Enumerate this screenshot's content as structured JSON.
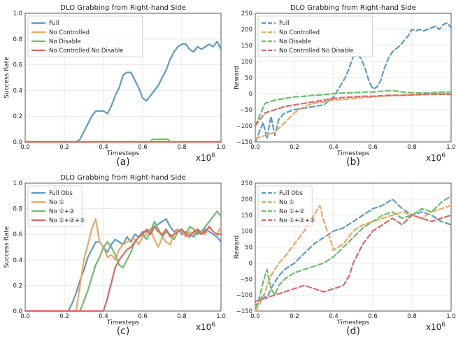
{
  "colors": {
    "blue": "#5b9bc8",
    "orange": "#f4a460",
    "green": "#6abf69",
    "red": "#e06666"
  },
  "chart_data": [
    {
      "panel": "(a)",
      "type": "line",
      "dashed": false,
      "title": "DLO Grabbing from Right-hand Side",
      "xlabel": "Timesteps",
      "ylabel": "Success Rate",
      "x_scale_label": "x10",
      "x_scale_exp": "6",
      "xlim": [
        0,
        1.0
      ],
      "ylim": [
        0,
        1.0
      ],
      "xticks": [
        "0.0",
        "0.2",
        "0.4",
        "0.6",
        "0.8",
        "1.0"
      ],
      "yticks": [
        "0.0",
        "0.2",
        "0.4",
        "0.6",
        "0.8",
        "1.0"
      ],
      "legend_position": "top-left",
      "series": [
        {
          "name": "Full",
          "color": "#5b9bc8",
          "x": [
            0,
            0.26,
            0.28,
            0.3,
            0.32,
            0.34,
            0.36,
            0.38,
            0.4,
            0.42,
            0.44,
            0.46,
            0.48,
            0.5,
            0.52,
            0.54,
            0.56,
            0.58,
            0.6,
            0.62,
            0.64,
            0.66,
            0.68,
            0.7,
            0.72,
            0.74,
            0.76,
            0.78,
            0.8,
            0.82,
            0.84,
            0.86,
            0.88,
            0.9,
            0.92,
            0.94,
            0.96,
            0.98,
            1.0
          ],
          "y": [
            0,
            0,
            0.02,
            0.08,
            0.14,
            0.2,
            0.24,
            0.24,
            0.24,
            0.22,
            0.28,
            0.36,
            0.42,
            0.52,
            0.54,
            0.54,
            0.48,
            0.42,
            0.34,
            0.32,
            0.36,
            0.4,
            0.44,
            0.5,
            0.56,
            0.64,
            0.7,
            0.74,
            0.76,
            0.76,
            0.72,
            0.7,
            0.74,
            0.72,
            0.74,
            0.76,
            0.74,
            0.78,
            0.72
          ]
        },
        {
          "name": "No Controlled",
          "color": "#f4a460",
          "x": [
            0,
            1.0
          ],
          "y": [
            0,
            0
          ]
        },
        {
          "name": "No Disable",
          "color": "#6abf69",
          "x": [
            0,
            0.64,
            0.65,
            0.73,
            0.74,
            1.0
          ],
          "y": [
            0,
            0,
            0.02,
            0.02,
            0,
            0
          ]
        },
        {
          "name": "No Controlled No Disable",
          "color": "#e06666",
          "x": [
            0,
            1.0
          ],
          "y": [
            0,
            0
          ]
        }
      ]
    },
    {
      "panel": "(b)",
      "type": "line",
      "dashed": true,
      "title": "DLO Grabbing from Right-hand Side",
      "xlabel": "Timesteps",
      "ylabel": "Reward",
      "x_scale_label": "x10",
      "x_scale_exp": "6",
      "xlim": [
        0,
        1.0
      ],
      "ylim": [
        -150,
        250
      ],
      "xticks": [
        "0.0",
        "0.2",
        "0.4",
        "0.6",
        "0.8",
        "1.0"
      ],
      "yticks": [
        "−150",
        "−100",
        "−50",
        "0",
        "50",
        "100",
        "150",
        "200",
        "250"
      ],
      "legend_position": "top-left",
      "series": [
        {
          "name": "Full",
          "color": "#5b9bc8",
          "x": [
            0,
            0.02,
            0.04,
            0.06,
            0.08,
            0.1,
            0.12,
            0.15,
            0.2,
            0.25,
            0.3,
            0.35,
            0.4,
            0.43,
            0.46,
            0.48,
            0.5,
            0.52,
            0.54,
            0.56,
            0.58,
            0.6,
            0.62,
            0.64,
            0.66,
            0.68,
            0.7,
            0.72,
            0.74,
            0.76,
            0.78,
            0.8,
            0.82,
            0.84,
            0.86,
            0.88,
            0.9,
            0.92,
            0.94,
            0.96,
            0.98,
            1.0
          ],
          "y": [
            -150,
            -120,
            -90,
            -140,
            -70,
            -130,
            -80,
            -60,
            -50,
            -45,
            -40,
            -35,
            -10,
            20,
            50,
            80,
            115,
            120,
            110,
            80,
            40,
            15,
            20,
            40,
            80,
            110,
            130,
            140,
            150,
            165,
            180,
            200,
            195,
            200,
            195,
            200,
            205,
            210,
            200,
            215,
            220,
            205
          ]
        },
        {
          "name": "No Controlled",
          "color": "#f4a460",
          "x": [
            0,
            0.05,
            0.1,
            0.15,
            0.2,
            0.25,
            0.3,
            0.35,
            0.4,
            0.45,
            0.5,
            0.55,
            0.6,
            0.65,
            0.7,
            0.75,
            0.8,
            0.85,
            0.9,
            0.95,
            1.0
          ],
          "y": [
            -140,
            -130,
            -120,
            -90,
            -60,
            -40,
            -30,
            -25,
            -20,
            -18,
            -15,
            -12,
            -10,
            -8,
            -6,
            -5,
            -4,
            -2,
            0,
            0,
            0
          ]
        },
        {
          "name": "No Disable",
          "color": "#6abf69",
          "x": [
            0,
            0.05,
            0.1,
            0.15,
            0.2,
            0.25,
            0.3,
            0.35,
            0.4,
            0.45,
            0.5,
            0.55,
            0.6,
            0.65,
            0.7,
            0.75,
            0.8,
            0.85,
            0.9,
            0.95,
            1.0
          ],
          "y": [
            -100,
            -30,
            -20,
            -15,
            -10,
            -8,
            -5,
            -3,
            0,
            2,
            3,
            5,
            5,
            8,
            10,
            5,
            3,
            2,
            3,
            5,
            5
          ]
        },
        {
          "name": "No Controlled No Disable",
          "color": "#e06666",
          "x": [
            0,
            0.05,
            0.1,
            0.15,
            0.2,
            0.25,
            0.3,
            0.35,
            0.4,
            0.45,
            0.5,
            0.55,
            0.6,
            0.65,
            0.7,
            0.75,
            0.8,
            0.85,
            0.9,
            0.95,
            1.0
          ],
          "y": [
            -100,
            -60,
            -50,
            -40,
            -35,
            -30,
            -25,
            -20,
            -15,
            -12,
            -10,
            -8,
            -8,
            -6,
            -5,
            -5,
            -4,
            -3,
            -2,
            -2,
            -2
          ]
        }
      ]
    },
    {
      "panel": "(c)",
      "type": "line",
      "dashed": false,
      "title": "DLO Grabbing from Right-hand Side",
      "xlabel": "Timesteps",
      "ylabel": "Success Rate",
      "x_scale_label": "x10",
      "x_scale_exp": "6",
      "xlim": [
        0,
        1.0
      ],
      "ylim": [
        0,
        1.0
      ],
      "xticks": [
        "0.0",
        "0.2",
        "0.4",
        "0.6",
        "0.8",
        "1.0"
      ],
      "yticks": [
        "0.0",
        "0.2",
        "0.4",
        "0.6",
        "0.8",
        "1.0"
      ],
      "legend_position": "top-left",
      "series": [
        {
          "name": "Full Obs",
          "color": "#5b9bc8",
          "x": [
            0,
            0.22,
            0.24,
            0.26,
            0.28,
            0.3,
            0.32,
            0.34,
            0.36,
            0.38,
            0.4,
            0.42,
            0.44,
            0.46,
            0.48,
            0.5,
            0.52,
            0.54,
            0.56,
            0.58,
            0.6,
            0.62,
            0.64,
            0.66,
            0.68,
            0.7,
            0.72,
            0.74,
            0.76,
            0.78,
            0.8,
            0.82,
            0.84,
            0.86,
            0.88,
            0.9,
            0.92,
            0.94,
            0.96,
            0.98,
            1.0
          ],
          "y": [
            0,
            0,
            0.06,
            0.14,
            0.24,
            0.32,
            0.42,
            0.48,
            0.54,
            0.54,
            0.5,
            0.46,
            0.52,
            0.56,
            0.54,
            0.52,
            0.58,
            0.54,
            0.6,
            0.58,
            0.62,
            0.62,
            0.64,
            0.66,
            0.68,
            0.7,
            0.72,
            0.66,
            0.62,
            0.64,
            0.6,
            0.62,
            0.6,
            0.58,
            0.62,
            0.6,
            0.64,
            0.62,
            0.6,
            0.58,
            0.54
          ]
        },
        {
          "name": "No ①",
          "color": "#f4a460",
          "x": [
            0,
            0.26,
            0.28,
            0.3,
            0.32,
            0.34,
            0.36,
            0.38,
            0.4,
            0.42,
            0.44,
            0.46,
            0.48,
            0.5,
            0.52,
            0.54,
            0.56,
            0.58,
            0.6,
            0.62,
            0.64,
            0.66,
            0.68,
            0.7,
            0.72,
            0.74,
            0.76,
            0.78,
            0.8,
            0.82,
            0.84,
            0.86,
            0.88,
            0.9,
            0.92,
            0.94,
            0.96,
            0.98,
            1.0
          ],
          "y": [
            0,
            0,
            0.2,
            0.4,
            0.52,
            0.64,
            0.72,
            0.54,
            0.5,
            0.42,
            0.44,
            0.4,
            0.48,
            0.52,
            0.54,
            0.56,
            0.56,
            0.52,
            0.58,
            0.6,
            0.64,
            0.56,
            0.5,
            0.58,
            0.54,
            0.52,
            0.6,
            0.64,
            0.62,
            0.58,
            0.62,
            0.6,
            0.64,
            0.62,
            0.6,
            0.66,
            0.62,
            0.6,
            0.66
          ]
        },
        {
          "name": "No ①+②",
          "color": "#6abf69",
          "x": [
            0,
            0.28,
            0.3,
            0.32,
            0.34,
            0.36,
            0.38,
            0.4,
            0.42,
            0.44,
            0.46,
            0.48,
            0.5,
            0.52,
            0.54,
            0.56,
            0.58,
            0.6,
            0.62,
            0.64,
            0.66,
            0.68,
            0.7,
            0.72,
            0.74,
            0.76,
            0.78,
            0.8,
            0.82,
            0.84,
            0.86,
            0.88,
            0.9,
            0.92,
            0.94,
            0.96,
            0.98,
            1.0
          ],
          "y": [
            0,
            0,
            0.08,
            0.16,
            0.26,
            0.36,
            0.42,
            0.5,
            0.54,
            0.5,
            0.44,
            0.36,
            0.34,
            0.4,
            0.46,
            0.54,
            0.58,
            0.6,
            0.56,
            0.62,
            0.7,
            0.64,
            0.58,
            0.62,
            0.6,
            0.56,
            0.62,
            0.64,
            0.6,
            0.66,
            0.64,
            0.6,
            0.62,
            0.66,
            0.7,
            0.74,
            0.78,
            0.74
          ]
        },
        {
          "name": "No ①+②+③",
          "color": "#e06666",
          "x": [
            0,
            0.4,
            0.42,
            0.44,
            0.46,
            0.48,
            0.5,
            0.52,
            0.54,
            0.56,
            0.58,
            0.6,
            0.62,
            0.64,
            0.66,
            0.68,
            0.7,
            0.72,
            0.74,
            0.76,
            0.78,
            0.8,
            0.82,
            0.84,
            0.86,
            0.88,
            0.9,
            0.92,
            0.94,
            0.96,
            0.98,
            1.0
          ],
          "y": [
            0,
            0,
            0.1,
            0.22,
            0.34,
            0.4,
            0.44,
            0.48,
            0.5,
            0.54,
            0.58,
            0.6,
            0.64,
            0.6,
            0.66,
            0.62,
            0.6,
            0.64,
            0.58,
            0.6,
            0.62,
            0.64,
            0.6,
            0.58,
            0.62,
            0.64,
            0.6,
            0.62,
            0.66,
            0.62,
            0.6,
            0.6
          ]
        }
      ]
    },
    {
      "panel": "(d)",
      "type": "line",
      "dashed": true,
      "title": "",
      "xlabel": "Timesteps",
      "ylabel": "Reward",
      "x_scale_label": "x10",
      "x_scale_exp": "6",
      "xlim": [
        0,
        1.0
      ],
      "ylim": [
        -150,
        250
      ],
      "xticks": [
        "0.0",
        "0.2",
        "0.4",
        "0.6",
        "0.8",
        "1.0"
      ],
      "yticks": [
        "−150",
        "−100",
        "−50",
        "0",
        "50",
        "100",
        "150",
        "200",
        "250"
      ],
      "legend_position": "top-left",
      "series": [
        {
          "name": "Full Obs",
          "color": "#5b9bc8",
          "x": [
            0,
            0.02,
            0.04,
            0.06,
            0.08,
            0.1,
            0.12,
            0.15,
            0.2,
            0.25,
            0.3,
            0.35,
            0.4,
            0.45,
            0.5,
            0.55,
            0.6,
            0.65,
            0.7,
            0.75,
            0.8,
            0.85,
            0.9,
            0.95,
            1.0
          ],
          "y": [
            -140,
            -120,
            -100,
            -110,
            -80,
            -60,
            -40,
            -20,
            0,
            30,
            60,
            80,
            100,
            110,
            130,
            150,
            170,
            180,
            200,
            170,
            150,
            160,
            150,
            130,
            120
          ]
        },
        {
          "name": "No ①",
          "color": "#f4a460",
          "x": [
            0,
            0.02,
            0.04,
            0.06,
            0.08,
            0.1,
            0.12,
            0.15,
            0.2,
            0.25,
            0.3,
            0.33,
            0.35,
            0.38,
            0.4,
            0.45,
            0.5,
            0.55,
            0.6,
            0.65,
            0.7,
            0.75,
            0.8,
            0.85,
            0.9,
            0.95,
            1.0
          ],
          "y": [
            -150,
            -130,
            -110,
            -70,
            -40,
            -20,
            0,
            20,
            60,
            100,
            150,
            180,
            130,
            80,
            40,
            60,
            100,
            120,
            130,
            140,
            150,
            160,
            150,
            140,
            160,
            170,
            180
          ]
        },
        {
          "name": "No ①+②",
          "color": "#6abf69",
          "x": [
            0,
            0.02,
            0.04,
            0.06,
            0.08,
            0.1,
            0.12,
            0.15,
            0.2,
            0.25,
            0.3,
            0.35,
            0.4,
            0.45,
            0.5,
            0.55,
            0.6,
            0.65,
            0.7,
            0.75,
            0.8,
            0.85,
            0.9,
            0.95,
            1.0
          ],
          "y": [
            -140,
            -110,
            -60,
            -20,
            -80,
            -100,
            -70,
            -50,
            -30,
            -20,
            -10,
            0,
            20,
            50,
            80,
            110,
            130,
            150,
            160,
            140,
            150,
            170,
            160,
            190,
            210
          ]
        },
        {
          "name": "No ①+②+③",
          "color": "#e06666",
          "x": [
            0,
            0.05,
            0.1,
            0.15,
            0.2,
            0.25,
            0.3,
            0.35,
            0.4,
            0.45,
            0.48,
            0.5,
            0.55,
            0.6,
            0.65,
            0.7,
            0.75,
            0.8,
            0.85,
            0.9,
            0.95,
            1.0
          ],
          "y": [
            -120,
            -110,
            -100,
            -90,
            -80,
            -70,
            -80,
            -90,
            -80,
            -70,
            -40,
            0,
            60,
            100,
            120,
            140,
            120,
            150,
            140,
            130,
            140,
            150
          ]
        }
      ]
    }
  ]
}
